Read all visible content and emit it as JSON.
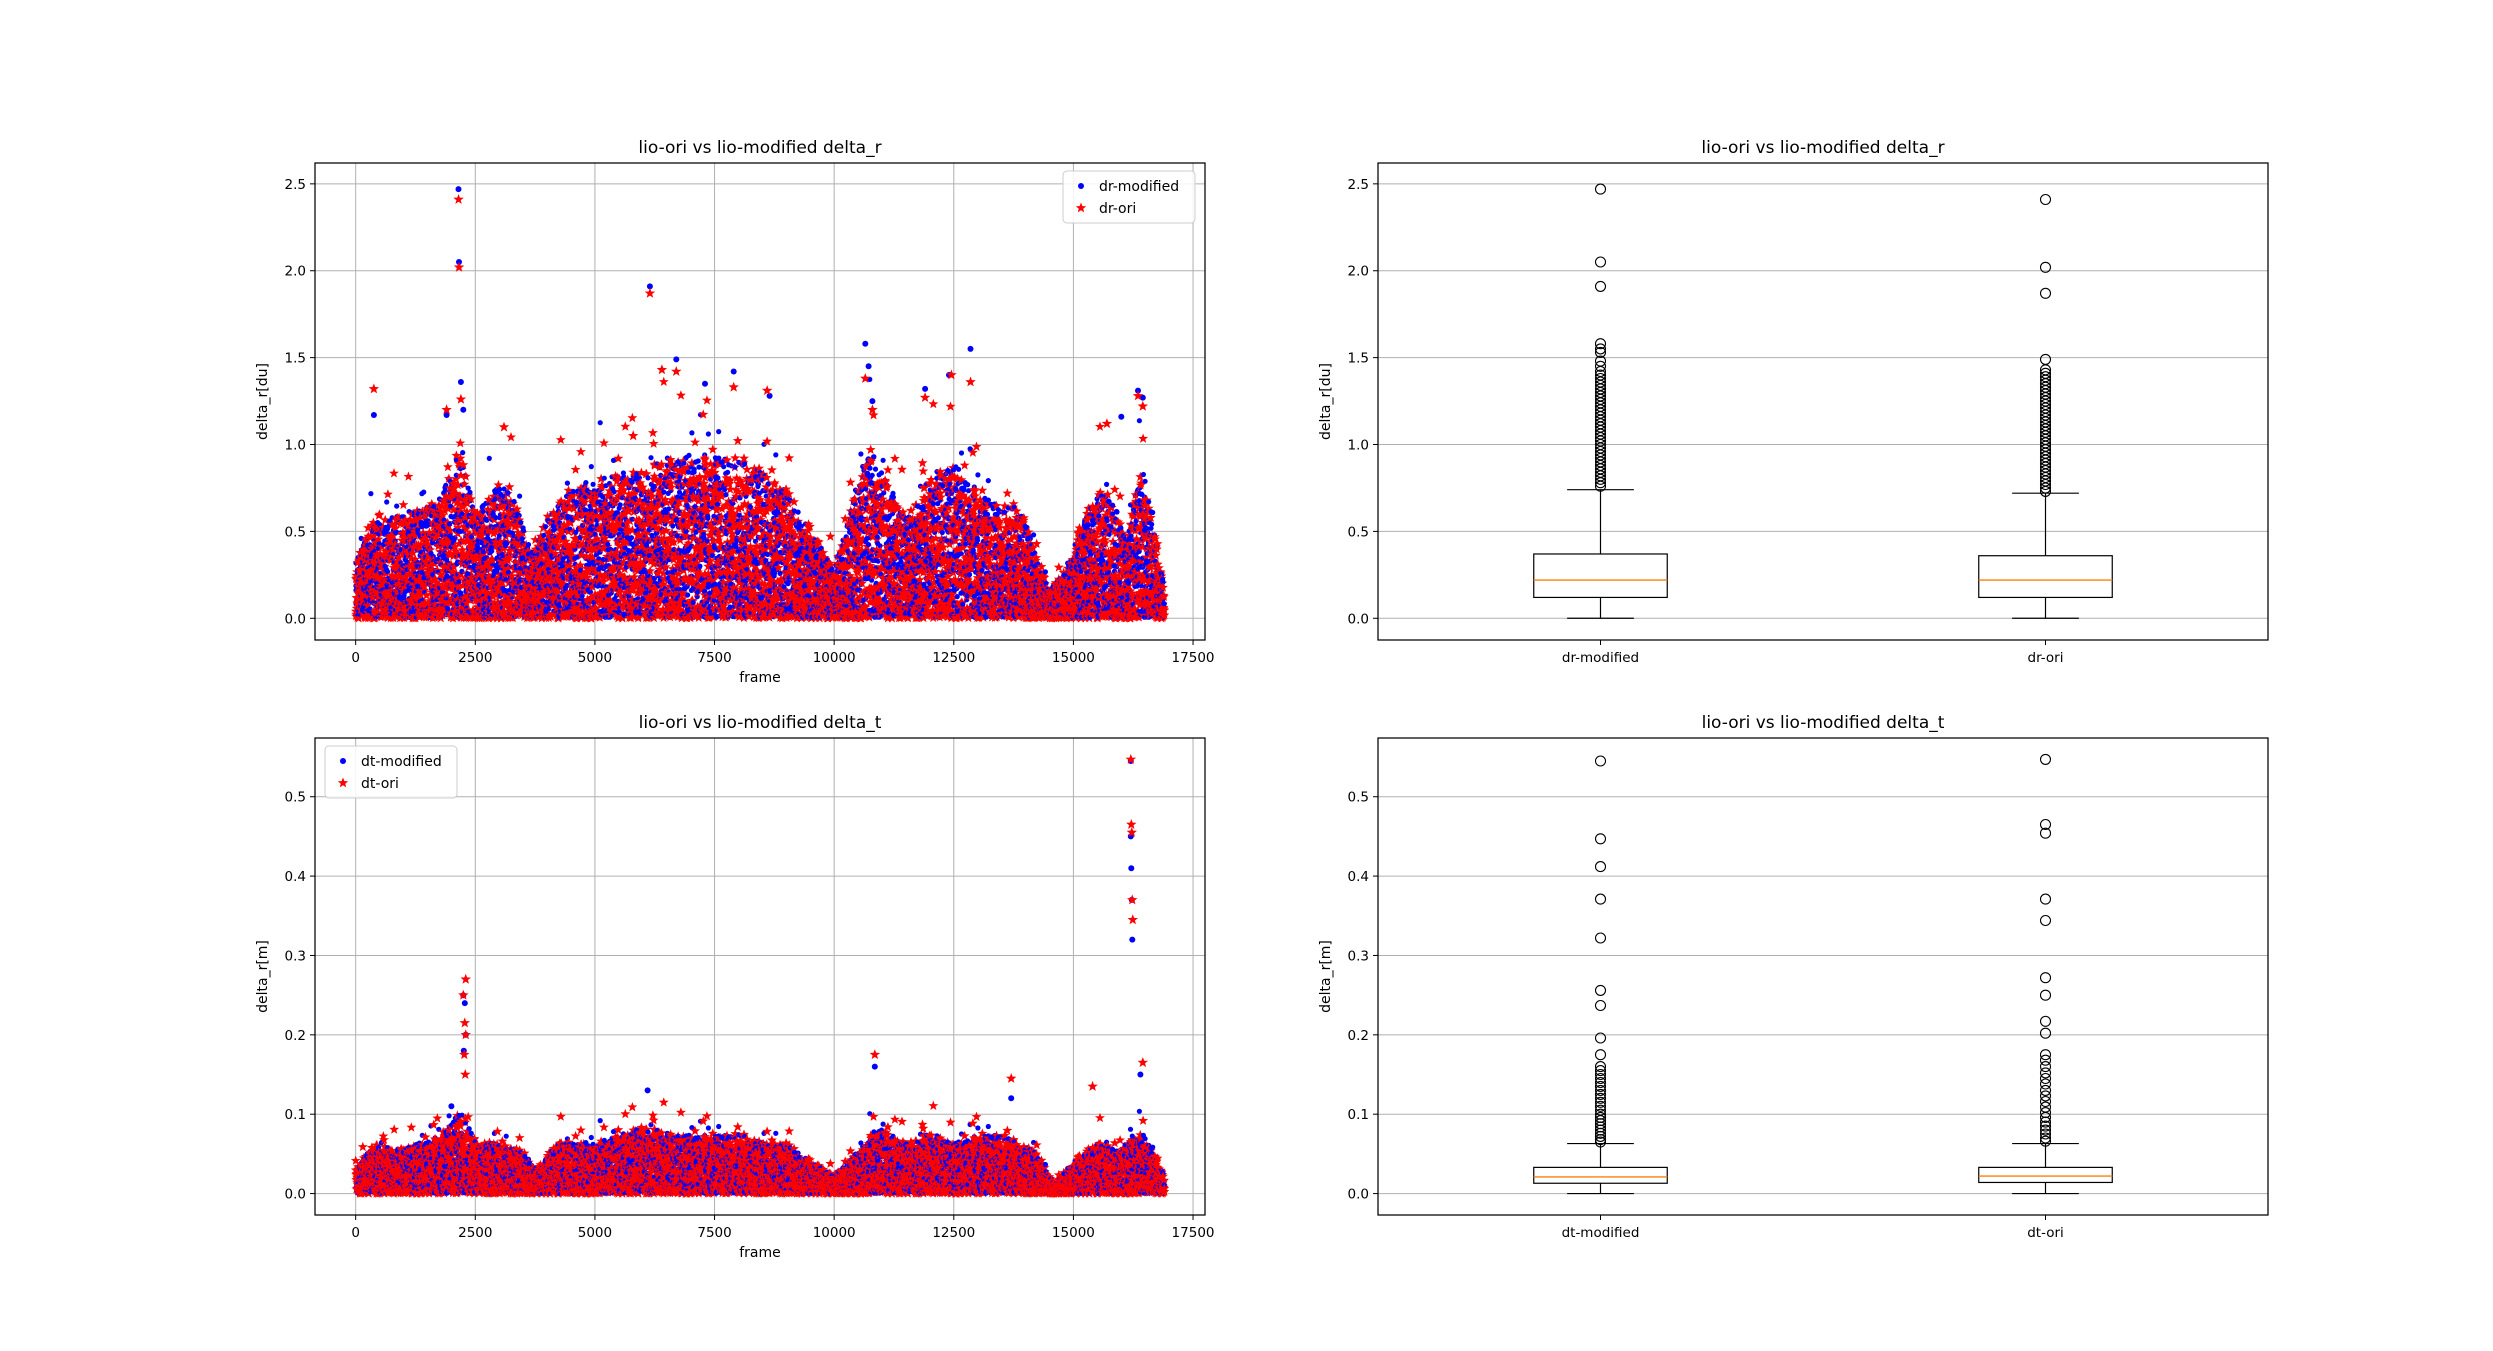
{
  "colors": {
    "modified": "#0000ff",
    "ori": "#ff0000",
    "median": "#ff7f0e",
    "grid": "#b0b0b0"
  },
  "chart_data": [
    {
      "id": "scatter_dr",
      "type": "scatter",
      "title": "lio-ori vs lio-modified delta_r",
      "xlabel": "frame",
      "ylabel": "delta_r[du]",
      "xlim": [
        -850,
        17750
      ],
      "ylim": [
        -0.125,
        2.62
      ],
      "xticks": [
        0,
        2500,
        5000,
        7500,
        10000,
        12500,
        15000,
        17500
      ],
      "xticklabels": [
        "0",
        "2500",
        "5000",
        "7500",
        "10000",
        "12500",
        "15000",
        "17500"
      ],
      "yticks": [
        0.0,
        0.5,
        1.0,
        1.5,
        2.0,
        2.5
      ],
      "yticklabels": [
        "0.0",
        "0.5",
        "1.0",
        "1.5",
        "2.0",
        "2.5"
      ],
      "grid": true,
      "legend_position": "upper right",
      "series": [
        {
          "name": "dr-modified",
          "marker": "dot",
          "color": "#0000ff"
        },
        {
          "name": "dr-ori",
          "marker": "star",
          "color": "#ff0000"
        }
      ],
      "n_frames": 16900,
      "envelope": [
        [
          0,
          0.3
        ],
        [
          400,
          0.55
        ],
        [
          800,
          0.55
        ],
        [
          1300,
          0.6
        ],
        [
          1700,
          0.62
        ],
        [
          2000,
          0.8
        ],
        [
          2200,
          0.95
        ],
        [
          2500,
          0.55
        ],
        [
          3000,
          0.75
        ],
        [
          3300,
          0.65
        ],
        [
          3700,
          0.35
        ],
        [
          4000,
          0.55
        ],
        [
          4500,
          0.7
        ],
        [
          5000,
          0.75
        ],
        [
          5500,
          0.8
        ],
        [
          6000,
          0.8
        ],
        [
          6500,
          0.85
        ],
        [
          7000,
          0.9
        ],
        [
          7500,
          0.9
        ],
        [
          8000,
          0.85
        ],
        [
          8500,
          0.8
        ],
        [
          9000,
          0.7
        ],
        [
          9500,
          0.5
        ],
        [
          10000,
          0.25
        ],
        [
          10300,
          0.55
        ],
        [
          10700,
          0.95
        ],
        [
          11000,
          0.8
        ],
        [
          11500,
          0.55
        ],
        [
          12000,
          0.75
        ],
        [
          12500,
          0.85
        ],
        [
          13000,
          0.7
        ],
        [
          13500,
          0.6
        ],
        [
          13900,
          0.6
        ],
        [
          14200,
          0.35
        ],
        [
          14500,
          0.15
        ],
        [
          14800,
          0.25
        ],
        [
          15200,
          0.55
        ],
        [
          15600,
          0.7
        ],
        [
          15900,
          0.6
        ],
        [
          16100,
          0.4
        ],
        [
          16300,
          0.75
        ],
        [
          16500,
          0.8
        ],
        [
          16700,
          0.45
        ],
        [
          16900,
          0.15
        ]
      ],
      "spikes": {
        "dr-modified": [
          [
            2150,
            2.47
          ],
          [
            2160,
            2.05
          ],
          [
            2200,
            1.36
          ],
          [
            6150,
            1.91
          ],
          [
            6700,
            1.49
          ],
          [
            10650,
            1.58
          ],
          [
            12850,
            1.55
          ],
          [
            10720,
            1.45
          ],
          [
            7900,
            1.42
          ],
          [
            12400,
            1.4
          ],
          [
            16350,
            1.31
          ],
          [
            16450,
            1.27
          ],
          [
            8650,
            1.28
          ],
          [
            10800,
            1.25
          ],
          [
            1900,
            1.17
          ],
          [
            380,
            1.17
          ],
          [
            16000,
            1.16
          ],
          [
            2250,
            1.2
          ],
          [
            7300,
            1.35
          ],
          [
            11900,
            1.32
          ]
        ],
        "dr-ori": [
          [
            2150,
            2.41
          ],
          [
            2160,
            2.02
          ],
          [
            6150,
            1.87
          ],
          [
            380,
            1.32
          ],
          [
            6400,
            1.43
          ],
          [
            6700,
            1.42
          ],
          [
            12450,
            1.4
          ],
          [
            12850,
            1.36
          ],
          [
            10650,
            1.38
          ],
          [
            8600,
            1.31
          ],
          [
            7900,
            1.33
          ],
          [
            11900,
            1.27
          ],
          [
            16350,
            1.28
          ],
          [
            16450,
            1.22
          ],
          [
            2200,
            1.26
          ],
          [
            1900,
            1.2
          ],
          [
            3100,
            1.1
          ],
          [
            5800,
            1.05
          ],
          [
            15700,
            1.12
          ],
          [
            10800,
            1.2
          ]
        ]
      }
    },
    {
      "id": "box_dr",
      "type": "box",
      "title": "lio-ori vs lio-modified delta_r",
      "xlabel": "",
      "ylabel": "delta_r[du]",
      "ylim": [
        -0.125,
        2.62
      ],
      "yticks": [
        0.0,
        0.5,
        1.0,
        1.5,
        2.0,
        2.5
      ],
      "yticklabels": [
        "0.0",
        "0.5",
        "1.0",
        "1.5",
        "2.0",
        "2.5"
      ],
      "grid": true,
      "categories": [
        "dr-modified",
        "dr-ori"
      ],
      "boxes": [
        {
          "min": 0.0,
          "q1": 0.12,
          "median": 0.22,
          "q3": 0.37,
          "whisker_high": 0.74,
          "outliers": [
            2.47,
            2.05,
            1.91,
            1.58,
            1.55,
            1.53,
            1.48,
            1.45,
            1.42,
            1.4,
            1.38,
            1.36,
            1.34,
            1.32,
            1.3,
            1.28,
            1.26,
            1.24,
            1.22,
            1.2,
            1.18,
            1.16,
            1.14,
            1.12,
            1.1,
            1.08,
            1.06,
            1.04,
            1.02,
            1.0,
            0.98,
            0.96,
            0.94,
            0.92,
            0.9,
            0.88,
            0.86,
            0.84,
            0.82,
            0.8,
            0.78,
            0.76
          ]
        },
        {
          "min": 0.0,
          "q1": 0.12,
          "median": 0.22,
          "q3": 0.36,
          "whisker_high": 0.72,
          "outliers": [
            2.41,
            2.02,
            1.87,
            1.49,
            1.43,
            1.41,
            1.39,
            1.37,
            1.35,
            1.33,
            1.31,
            1.29,
            1.27,
            1.25,
            1.23,
            1.21,
            1.19,
            1.17,
            1.15,
            1.13,
            1.11,
            1.09,
            1.07,
            1.05,
            1.03,
            1.01,
            0.99,
            0.97,
            0.95,
            0.93,
            0.91,
            0.89,
            0.87,
            0.85,
            0.83,
            0.81,
            0.79,
            0.77,
            0.75,
            0.73
          ]
        }
      ]
    },
    {
      "id": "scatter_dt",
      "type": "scatter",
      "title": "lio-ori vs lio-modified delta_t",
      "xlabel": "frame",
      "ylabel": "delta_r[m]",
      "xlim": [
        -850,
        17750
      ],
      "ylim": [
        -0.027,
        0.574
      ],
      "xticks": [
        0,
        2500,
        5000,
        7500,
        10000,
        12500,
        15000,
        17500
      ],
      "xticklabels": [
        "0",
        "2500",
        "5000",
        "7500",
        "10000",
        "12500",
        "15000",
        "17500"
      ],
      "yticks": [
        0.0,
        0.1,
        0.2,
        0.3,
        0.4,
        0.5
      ],
      "yticklabels": [
        "0.0",
        "0.1",
        "0.2",
        "0.3",
        "0.4",
        "0.5"
      ],
      "grid": true,
      "legend_position": "upper left",
      "series": [
        {
          "name": "dt-modified",
          "marker": "dot",
          "color": "#0000ff"
        },
        {
          "name": "dt-ori",
          "marker": "star",
          "color": "#ff0000"
        }
      ],
      "n_frames": 16900,
      "envelope": [
        [
          0,
          0.03
        ],
        [
          400,
          0.06
        ],
        [
          800,
          0.05
        ],
        [
          1300,
          0.06
        ],
        [
          1800,
          0.07
        ],
        [
          2200,
          0.1
        ],
        [
          2500,
          0.06
        ],
        [
          3000,
          0.06
        ],
        [
          3500,
          0.05
        ],
        [
          3800,
          0.03
        ],
        [
          4200,
          0.06
        ],
        [
          5000,
          0.06
        ],
        [
          6000,
          0.08
        ],
        [
          6500,
          0.07
        ],
        [
          7000,
          0.07
        ],
        [
          7500,
          0.07
        ],
        [
          8000,
          0.07
        ],
        [
          8500,
          0.06
        ],
        [
          9000,
          0.06
        ],
        [
          9500,
          0.04
        ],
        [
          10000,
          0.02
        ],
        [
          10500,
          0.05
        ],
        [
          10900,
          0.08
        ],
        [
          11500,
          0.06
        ],
        [
          12000,
          0.07
        ],
        [
          12500,
          0.06
        ],
        [
          13000,
          0.07
        ],
        [
          13500,
          0.07
        ],
        [
          13800,
          0.06
        ],
        [
          14200,
          0.05
        ],
        [
          14600,
          0.01
        ],
        [
          15000,
          0.04
        ],
        [
          15500,
          0.06
        ],
        [
          16000,
          0.05
        ],
        [
          16200,
          0.07
        ],
        [
          16500,
          0.07
        ],
        [
          16900,
          0.02
        ]
      ],
      "spikes": {
        "dt-modified": [
          [
            16200,
            0.545
          ],
          [
            16200,
            0.45
          ],
          [
            16210,
            0.41
          ],
          [
            16220,
            0.37
          ],
          [
            16230,
            0.32
          ],
          [
            2250,
            0.25
          ],
          [
            2280,
            0.24
          ],
          [
            2300,
            0.2
          ],
          [
            2260,
            0.18
          ],
          [
            16400,
            0.15
          ],
          [
            10850,
            0.16
          ],
          [
            13700,
            0.12
          ],
          [
            6100,
            0.13
          ],
          [
            2000,
            0.11
          ]
        ],
        "dt-ori": [
          [
            16200,
            0.547
          ],
          [
            16210,
            0.465
          ],
          [
            16220,
            0.455
          ],
          [
            16230,
            0.37
          ],
          [
            16240,
            0.345
          ],
          [
            2300,
            0.27
          ],
          [
            2250,
            0.25
          ],
          [
            2280,
            0.215
          ],
          [
            2300,
            0.2
          ],
          [
            2270,
            0.175
          ],
          [
            2290,
            0.15
          ],
          [
            10850,
            0.175
          ],
          [
            16450,
            0.165
          ],
          [
            13700,
            0.145
          ],
          [
            15400,
            0.135
          ]
        ]
      }
    },
    {
      "id": "box_dt",
      "type": "box",
      "title": "lio-ori vs lio-modified delta_t",
      "xlabel": "",
      "ylabel": "delta_r[m]",
      "ylim": [
        -0.027,
        0.574
      ],
      "yticks": [
        0.0,
        0.1,
        0.2,
        0.3,
        0.4,
        0.5
      ],
      "yticklabels": [
        "0.0",
        "0.1",
        "0.2",
        "0.3",
        "0.4",
        "0.5"
      ],
      "grid": true,
      "categories": [
        "dt-modified",
        "dt-ori"
      ],
      "boxes": [
        {
          "min": 0.0,
          "q1": 0.013,
          "median": 0.021,
          "q3": 0.033,
          "whisker_high": 0.063,
          "outliers": [
            0.545,
            0.447,
            0.412,
            0.371,
            0.322,
            0.256,
            0.237,
            0.196,
            0.175,
            0.16,
            0.155,
            0.15,
            0.145,
            0.14,
            0.135,
            0.13,
            0.125,
            0.12,
            0.115,
            0.11,
            0.105,
            0.1,
            0.096,
            0.092,
            0.088,
            0.084,
            0.08,
            0.076,
            0.072,
            0.068,
            0.065
          ]
        },
        {
          "min": 0.0,
          "q1": 0.014,
          "median": 0.022,
          "q3": 0.033,
          "whisker_high": 0.063,
          "outliers": [
            0.547,
            0.465,
            0.454,
            0.371,
            0.344,
            0.272,
            0.25,
            0.217,
            0.202,
            0.175,
            0.168,
            0.16,
            0.152,
            0.145,
            0.138,
            0.13,
            0.123,
            0.116,
            0.109,
            0.102,
            0.096,
            0.09,
            0.085,
            0.08,
            0.075,
            0.07,
            0.066
          ]
        }
      ]
    }
  ]
}
